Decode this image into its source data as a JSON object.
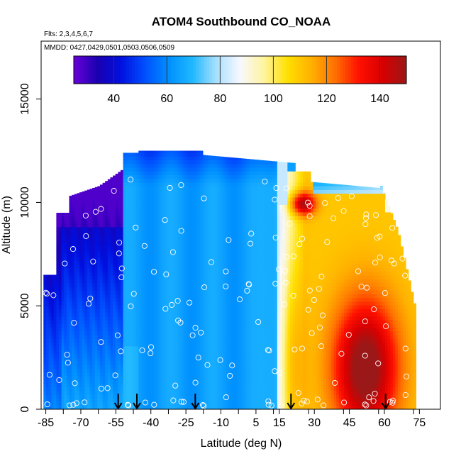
{
  "chart_data": {
    "type": "heatmap",
    "title": "ATOM4 Southbound CO_NOAA",
    "annotations": [
      "Flts: 2,3,4,5,6,7",
      "MMDD: 0427,0429,0501,0503,0506,0509"
    ],
    "xlabel": "Latitude (deg N)",
    "ylabel": "Altitude (m)",
    "xlim": [
      -87,
      84
    ],
    "ylim": [
      0,
      17800
    ],
    "xticks": [
      -85,
      -70,
      -55,
      -40,
      -25,
      -10,
      5,
      15,
      30,
      45,
      60,
      75
    ],
    "xtick_labels": [
      "-85",
      "-70",
      "-55",
      "-40",
      "-25",
      "-10",
      "5",
      "15",
      "30",
      "45",
      "60",
      "75"
    ],
    "yticks": [
      0,
      5000,
      10000,
      15000
    ],
    "ytick_labels": [
      "0",
      "5000",
      "10000",
      "15000"
    ],
    "colorbar": {
      "min": 25,
      "max": 150,
      "ticks": [
        40,
        60,
        80,
        100,
        120,
        140
      ],
      "tick_labels": [
        "40",
        "60",
        "80",
        "100",
        "120",
        "140"
      ],
      "colors": [
        "#6a00d8",
        "#1a00b0",
        "#0010e0",
        "#0050ff",
        "#0090ff",
        "#20b8ff",
        "#a8e0ff",
        "#f8f8ff",
        "#fff4a0",
        "#ffe000",
        "#ffb000",
        "#ff7000",
        "#ff1000",
        "#d80000",
        "#9a1818"
      ]
    },
    "field_description": "CO_NOAA mixing ratio curtain by latitude and altitude",
    "sample_points_description": "white open circles mark sample locations",
    "arrows_lat": [
      -54,
      -46,
      -21,
      20,
      60.5
    ]
  }
}
